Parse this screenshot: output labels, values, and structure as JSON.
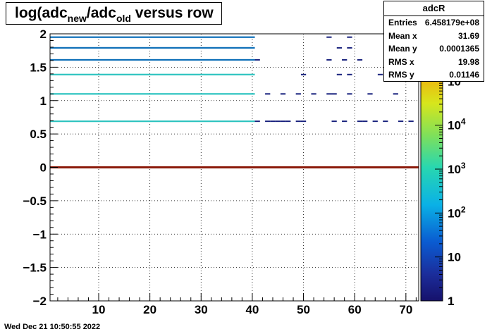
{
  "title": {
    "pre": "log(adc",
    "sub1": "new",
    "mid": "/adc",
    "sub2": "old",
    "post": " versus row"
  },
  "stats": {
    "name": "adcR",
    "rows": [
      {
        "label": "Entries",
        "value": "6.458179e+08"
      },
      {
        "label": "Mean x",
        "value": "31.69"
      },
      {
        "label": "Mean y",
        "value": "0.0001365"
      },
      {
        "label": "RMS x",
        "value": "19.98"
      },
      {
        "label": "RMS y",
        "value": "0.01146"
      }
    ]
  },
  "timestamp": "Wed Dec 21 10:50:55 2022",
  "chart_data": {
    "type": "heatmap",
    "xlim": [
      0.5,
      72.5
    ],
    "ylim": [
      -2,
      2
    ],
    "x_ticks": [
      10,
      20,
      30,
      40,
      50,
      60,
      70
    ],
    "x_tick_labels": [
      "10",
      "20",
      "30",
      "40",
      "50",
      "60",
      "70"
    ],
    "y_ticks": [
      -2,
      -1.5,
      -1,
      -0.5,
      0,
      0.5,
      1,
      1.5,
      2
    ],
    "y_tick_labels": [
      "−2",
      "−1.5",
      "−1",
      "−0.5",
      "0",
      "0.5",
      "1",
      "1.5",
      "2"
    ],
    "grid": true,
    "z_scale": "log",
    "z_ticks": [
      1,
      10,
      100,
      1000,
      10000,
      100000
    ],
    "z_tick_labels": [
      {
        "base": "1",
        "exp": ""
      },
      {
        "base": "10",
        "exp": ""
      },
      {
        "base": "10",
        "exp": "2"
      },
      {
        "base": "10",
        "exp": "3"
      },
      {
        "base": "10",
        "exp": "4"
      },
      {
        "base": "10",
        "exp": "5"
      }
    ],
    "colors": {
      "main_band": "#8b1a0a",
      "level_low": "#1a237e",
      "level_mid": "#0d6fb8",
      "level_high": "#2ec4c0"
    },
    "bands": [
      {
        "y": 0.0,
        "x_from": 0.5,
        "x_to": 72.5,
        "level": "main"
      },
      {
        "y": 1.95,
        "x_from": 0.5,
        "x_to": 40.5,
        "level": "mid"
      },
      {
        "y": 1.79,
        "x_from": 0.5,
        "x_to": 40.5,
        "level": "mid"
      },
      {
        "y": 1.61,
        "x_from": 0.5,
        "x_to": 40.5,
        "level": "mid"
      },
      {
        "y": 1.39,
        "x_from": 0.5,
        "x_to": 40.5,
        "level": "high"
      },
      {
        "y": 1.1,
        "x_from": 0.5,
        "x_to": 40.5,
        "level": "high"
      },
      {
        "y": 0.69,
        "x_from": 0.5,
        "x_to": 40.5,
        "level": "high"
      }
    ],
    "sparse_cells": [
      {
        "y": 1.95,
        "x": [
          55,
          59
        ]
      },
      {
        "y": 1.79,
        "x": [
          57,
          59
        ]
      },
      {
        "y": 1.61,
        "x": [
          41,
          55,
          58,
          61
        ]
      },
      {
        "y": 1.39,
        "x": [
          50,
          57,
          59,
          65,
          69
        ]
      },
      {
        "y": 1.1,
        "x": [
          43,
          46,
          49,
          52,
          55,
          56,
          59,
          63,
          68
        ]
      },
      {
        "y": 0.69,
        "x": [
          41,
          43,
          44,
          45,
          46,
          47,
          49,
          50,
          56,
          58,
          61,
          62,
          64,
          66,
          69,
          71
        ]
      }
    ]
  }
}
